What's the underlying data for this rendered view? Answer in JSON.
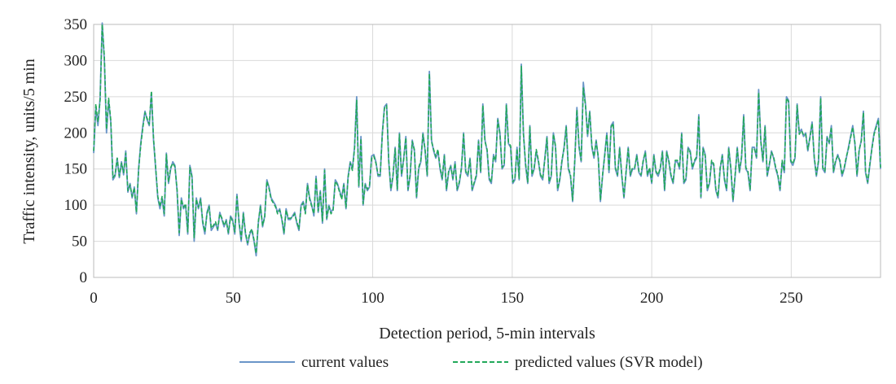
{
  "chart_data": {
    "type": "line",
    "title": "",
    "xlabel": "Detection period, 5-min intervals",
    "ylabel": "Traffic intensity, units/5 min",
    "xlim": [
      0,
      282
    ],
    "ylim": [
      0,
      350
    ],
    "xticks": [
      0,
      50,
      100,
      150,
      200,
      250
    ],
    "yticks": [
      0,
      50,
      100,
      150,
      200,
      250,
      300,
      350
    ],
    "grid": true,
    "legend_position": "bottom",
    "colors": {
      "current": "#6a95c8",
      "predicted": "#22a85a"
    },
    "series": [
      {
        "name": "current values",
        "style": "solid",
        "values": [
          172,
          235,
          210,
          248,
          352,
          300,
          200,
          245,
          215,
          135,
          140,
          165,
          138,
          160,
          142,
          175,
          118,
          130,
          110,
          125,
          88,
          150,
          185,
          210,
          230,
          218,
          210,
          255,
          190,
          150,
          110,
          95,
          110,
          85,
          172,
          130,
          150,
          160,
          155,
          120,
          58,
          110,
          95,
          100,
          60,
          155,
          140,
          50,
          110,
          95,
          110,
          75,
          60,
          90,
          100,
          65,
          70,
          75,
          65,
          90,
          80,
          70,
          80,
          60,
          85,
          80,
          60,
          115,
          75,
          50,
          90,
          60,
          45,
          60,
          65,
          50,
          30,
          75,
          100,
          70,
          85,
          135,
          125,
          110,
          105,
          100,
          90,
          95,
          80,
          60,
          95,
          80,
          80,
          85,
          90,
          75,
          65,
          100,
          105,
          90,
          130,
          110,
          100,
          85,
          140,
          90,
          120,
          75,
          150,
          80,
          100,
          90,
          95,
          135,
          130,
          120,
          110,
          130,
          95,
          140,
          160,
          150,
          180,
          250,
          125,
          195,
          100,
          130,
          120,
          125,
          168,
          170,
          160,
          140,
          140,
          200,
          236,
          240,
          160,
          120,
          140,
          180,
          120,
          200,
          140,
          165,
          195,
          120,
          140,
          190,
          175,
          110,
          150,
          160,
          200,
          175,
          140,
          285,
          190,
          175,
          165,
          175,
          150,
          135,
          170,
          120,
          145,
          155,
          135,
          160,
          120,
          130,
          150,
          200,
          145,
          140,
          165,
          120,
          130,
          140,
          190,
          145,
          240,
          190,
          175,
          135,
          130,
          170,
          160,
          220,
          200,
          150,
          155,
          240,
          185,
          180,
          130,
          135,
          180,
          135,
          295,
          200,
          155,
          130,
          210,
          140,
          150,
          175,
          160,
          140,
          135,
          165,
          195,
          130,
          140,
          200,
          180,
          120,
          135,
          160,
          180,
          210,
          150,
          140,
          105,
          160,
          235,
          180,
          160,
          270,
          240,
          195,
          230,
          180,
          165,
          190,
          165,
          105,
          140,
          170,
          200,
          145,
          210,
          215,
          150,
          140,
          180,
          140,
          110,
          145,
          180,
          140,
          150,
          150,
          170,
          145,
          140,
          160,
          175,
          140,
          150,
          130,
          170,
          145,
          140,
          150,
          175,
          120,
          175,
          160,
          140,
          130,
          160,
          160,
          150,
          200,
          130,
          135,
          180,
          175,
          150,
          160,
          165,
          225,
          110,
          180,
          170,
          120,
          130,
          160,
          155,
          120,
          110,
          150,
          170,
          135,
          120,
          180,
          150,
          105,
          140,
          180,
          145,
          165,
          225,
          150,
          145,
          120,
          180,
          180,
          165,
          260,
          190,
          160,
          210,
          140,
          155,
          175,
          165,
          150,
          140,
          120,
          160,
          145,
          250,
          245,
          160,
          155,
          165,
          240,
          200,
          205,
          195,
          200,
          175,
          195,
          215,
          165,
          140,
          160,
          250,
          150,
          145,
          195,
          185,
          210,
          145,
          160,
          170,
          160,
          140,
          150,
          165,
          180,
          195,
          210,
          185,
          140,
          175,
          190,
          230,
          145,
          130,
          155,
          180,
          200,
          210,
          220,
          150
        ]
      },
      {
        "name": "predicted values (SVR model)",
        "style": "dashed",
        "values": [
          175,
          240,
          215,
          245,
          350,
          305,
          205,
          248,
          218,
          138,
          142,
          165,
          140,
          158,
          145,
          172,
          120,
          128,
          112,
          124,
          90,
          148,
          182,
          207,
          228,
          220,
          212,
          258,
          192,
          152,
          112,
          98,
          112,
          88,
          170,
          132,
          152,
          158,
          153,
          122,
          62,
          108,
          97,
          102,
          63,
          152,
          138,
          55,
          108,
          97,
          108,
          78,
          63,
          88,
          98,
          68,
          72,
          77,
          67,
          88,
          82,
          72,
          78,
          62,
          83,
          78,
          63,
          112,
          77,
          53,
          88,
          62,
          48,
          62,
          67,
          52,
          33,
          77,
          98,
          72,
          83,
          133,
          123,
          108,
          103,
          98,
          88,
          93,
          82,
          62,
          93,
          82,
          82,
          83,
          88,
          77,
          67,
          98,
          103,
          88,
          128,
          108,
          98,
          88,
          138,
          92,
          118,
          78,
          148,
          82,
          98,
          88,
          93,
          133,
          128,
          118,
          108,
          128,
          97,
          138,
          158,
          148,
          178,
          245,
          127,
          192,
          102,
          128,
          122,
          127,
          165,
          168,
          158,
          142,
          142,
          198,
          234,
          238,
          162,
          122,
          142,
          178,
          122,
          198,
          142,
          163,
          193,
          122,
          142,
          188,
          177,
          112,
          152,
          162,
          198,
          177,
          142,
          282,
          188,
          177,
          167,
          177,
          152,
          137,
          168,
          122,
          147,
          153,
          137,
          158,
          122,
          132,
          152,
          198,
          147,
          142,
          163,
          122,
          132,
          142,
          188,
          147,
          238,
          188,
          177,
          137,
          132,
          168,
          162,
          218,
          198,
          152,
          157,
          238,
          187,
          182,
          132,
          137,
          178,
          137,
          292,
          198,
          157,
          132,
          208,
          142,
          152,
          177,
          162,
          142,
          137,
          163,
          193,
          132,
          142,
          198,
          182,
          122,
          137,
          162,
          178,
          208,
          152,
          142,
          107,
          162,
          232,
          182,
          162,
          262,
          238,
          197,
          228,
          182,
          167,
          188,
          167,
          107,
          142,
          168,
          198,
          147,
          208,
          213,
          152,
          142,
          178,
          142,
          112,
          147,
          178,
          142,
          152,
          152,
          168,
          147,
          142,
          162,
          173,
          142,
          152,
          132,
          168,
          147,
          142,
          152,
          173,
          122,
          173,
          162,
          142,
          132,
          162,
          162,
          152,
          198,
          132,
          137,
          178,
          173,
          152,
          162,
          167,
          222,
          112,
          178,
          168,
          122,
          132,
          162,
          157,
          122,
          112,
          152,
          168,
          137,
          122,
          178,
          152,
          107,
          142,
          178,
          147,
          167,
          222,
          152,
          147,
          122,
          178,
          178,
          167,
          256,
          188,
          162,
          208,
          142,
          157,
          173,
          167,
          152,
          142,
          122,
          162,
          147,
          248,
          243,
          162,
          157,
          167,
          238,
          198,
          203,
          197,
          198,
          177,
          193,
          213,
          167,
          142,
          162,
          248,
          152,
          147,
          193,
          187,
          208,
          147,
          162,
          168,
          162,
          142,
          152,
          167,
          178,
          193,
          208,
          187,
          142,
          177,
          188,
          228,
          147,
          132,
          157,
          178,
          198,
          208,
          218,
          152
        ]
      }
    ]
  }
}
